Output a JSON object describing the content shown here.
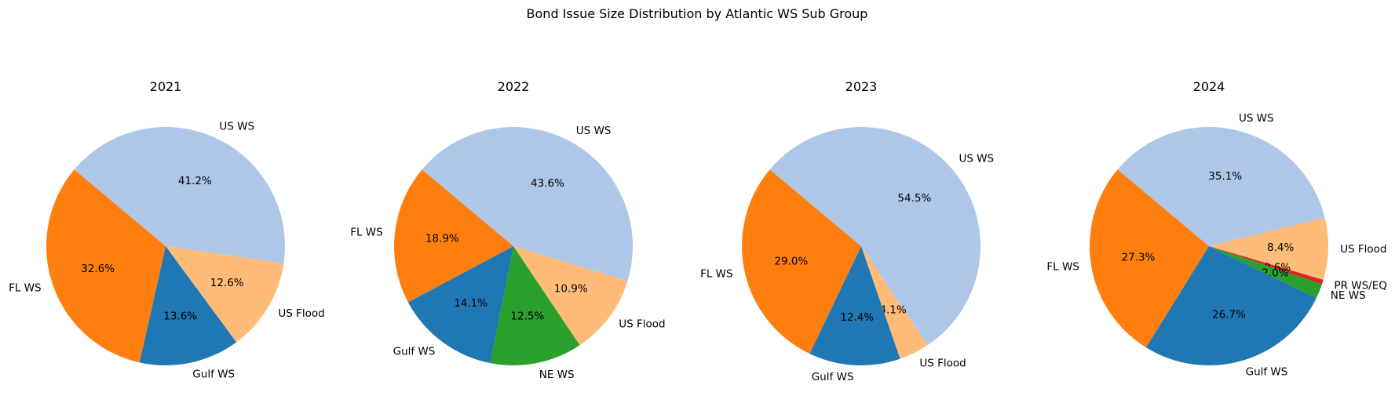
{
  "figure": {
    "suptitle": "Bond Issue Size Distribution by Atlantic WS Sub Group"
  },
  "chart_data": [
    {
      "type": "pie",
      "title": "2021",
      "start_angle_deg": 140,
      "slices": [
        {
          "label": "US WS",
          "value": 41.2,
          "pct_label": "41.2%",
          "color": "#aec7e8"
        },
        {
          "label": "US Flood",
          "value": 12.6,
          "pct_label": "12.6%",
          "color": "#ffbb78"
        },
        {
          "label": "Gulf WS",
          "value": 13.6,
          "pct_label": "13.6%",
          "color": "#1f77b4"
        },
        {
          "label": "FL WS",
          "value": 32.6,
          "pct_label": "32.6%",
          "color": "#ff7f0e"
        }
      ]
    },
    {
      "type": "pie",
      "title": "2022",
      "start_angle_deg": 140,
      "slices": [
        {
          "label": "US WS",
          "value": 43.6,
          "pct_label": "43.6%",
          "color": "#aec7e8"
        },
        {
          "label": "US Flood",
          "value": 10.9,
          "pct_label": "10.9%",
          "color": "#ffbb78"
        },
        {
          "label": "NE WS",
          "value": 12.5,
          "pct_label": "12.5%",
          "color": "#2ca02c"
        },
        {
          "label": "Gulf WS",
          "value": 14.1,
          "pct_label": "14.1%",
          "color": "#1f77b4"
        },
        {
          "label": "FL WS",
          "value": 18.9,
          "pct_label": "18.9%",
          "color": "#ff7f0e"
        }
      ]
    },
    {
      "type": "pie",
      "title": "2023",
      "start_angle_deg": 140,
      "slices": [
        {
          "label": "US WS",
          "value": 54.5,
          "pct_label": "54.5%",
          "color": "#aec7e8"
        },
        {
          "label": "US Flood",
          "value": 4.1,
          "pct_label": "4.1%",
          "color": "#ffbb78"
        },
        {
          "label": "Gulf WS",
          "value": 12.4,
          "pct_label": "12.4%",
          "color": "#1f77b4"
        },
        {
          "label": "FL WS",
          "value": 29.0,
          "pct_label": "29.0%",
          "color": "#ff7f0e"
        }
      ]
    },
    {
      "type": "pie",
      "title": "2024",
      "start_angle_deg": 140,
      "slices": [
        {
          "label": "US WS",
          "value": 35.1,
          "pct_label": "35.1%",
          "color": "#aec7e8"
        },
        {
          "label": "US Flood",
          "value": 8.4,
          "pct_label": "8.4%",
          "color": "#ffbb78"
        },
        {
          "label": "PR WS/EQ",
          "value": 0.6,
          "pct_label": "0.6%",
          "color": "#d62728"
        },
        {
          "label": "NE WS",
          "value": 2.0,
          "pct_label": "2.0%",
          "color": "#2ca02c"
        },
        {
          "label": "Gulf WS",
          "value": 26.7,
          "pct_label": "26.7%",
          "color": "#1f77b4"
        },
        {
          "label": "FL WS",
          "value": 27.3,
          "pct_label": "27.3%",
          "color": "#ff7f0e"
        }
      ]
    }
  ]
}
